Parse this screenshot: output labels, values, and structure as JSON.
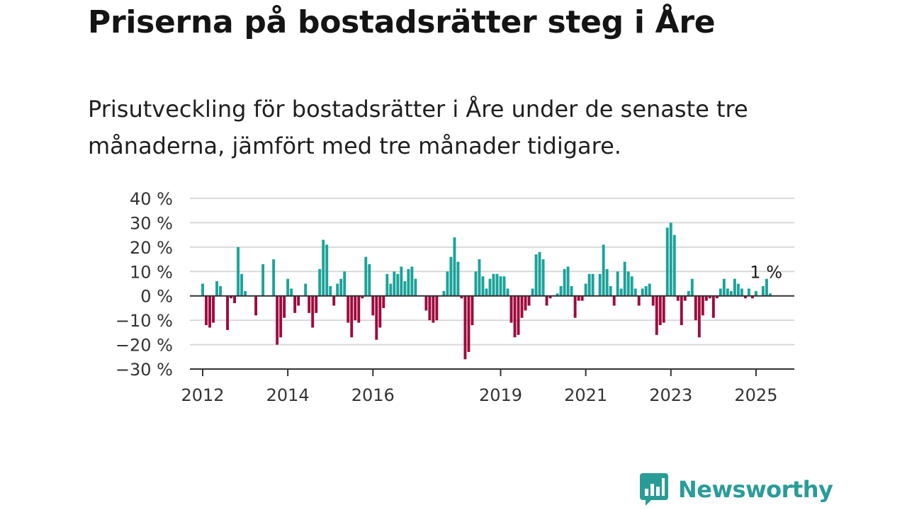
{
  "header": {
    "title": "Priserna på bostadsrätter steg i Åre",
    "subtitle": "Prisutveckling för bostadsrätter i Åre under de senaste tre månaderna, jämfört med tre månader tidigare."
  },
  "brand": {
    "name": "Newsworthy",
    "color": "#2a9c97"
  },
  "chart_data": {
    "type": "bar",
    "title": "",
    "xlabel": "",
    "ylabel": "",
    "ylim": [
      -30,
      40
    ],
    "xlim": [
      2011.7,
      2025.9
    ],
    "y_ticks": [
      40,
      30,
      20,
      10,
      0,
      -10,
      -20,
      -30
    ],
    "y_tick_labels": [
      "40 %",
      "30 %",
      "20 %",
      "10 %",
      "0 %",
      "−10 %",
      "−20 %",
      "−30 %"
    ],
    "x_ticks": [
      2012,
      2014,
      2016,
      2019,
      2021,
      2023,
      2025
    ],
    "x_tick_labels": [
      "2012",
      "2014",
      "2016",
      "2019",
      "2021",
      "2023",
      "2025"
    ],
    "grid": true,
    "legend": "none",
    "colors": {
      "positive": "#1aa39a",
      "negative": "#9e0a3c"
    },
    "annotation": {
      "text": "1 %",
      "x": 2025.17,
      "y": 1
    },
    "x_start": 2012.0,
    "x_step": 0.08333,
    "values": [
      5,
      -12,
      -13,
      -11,
      6,
      4,
      0,
      -14,
      -1,
      -3,
      20,
      9,
      2,
      0,
      0,
      -8,
      0,
      13,
      0,
      0,
      15,
      -20,
      -17,
      -9,
      7,
      3,
      -7,
      -4,
      0,
      5,
      -7,
      -13,
      -7,
      11,
      23,
      21,
      4,
      -4,
      5,
      7,
      10,
      -11,
      -17,
      -10,
      -11,
      -1,
      16,
      13,
      -8,
      -18,
      -13,
      -5,
      9,
      5,
      10,
      9,
      12,
      6,
      11,
      12,
      7,
      0,
      0,
      -6,
      -10,
      -11,
      -10,
      0,
      2,
      10,
      16,
      24,
      14,
      -1,
      -26,
      -23,
      -12,
      10,
      15,
      8,
      3,
      7,
      9,
      9,
      8,
      8,
      3,
      -11,
      -17,
      -16,
      -9,
      -6,
      -4,
      3,
      17,
      18,
      15,
      -4,
      -1,
      0,
      1,
      4,
      11,
      12,
      4,
      -9,
      -2,
      -2,
      5,
      9,
      9,
      0,
      9,
      21,
      11,
      4,
      -4,
      10,
      3,
      14,
      10,
      8,
      3,
      -4,
      3,
      4,
      5,
      -4,
      -16,
      -12,
      -11,
      28,
      30,
      25,
      -2,
      -12,
      -2,
      2,
      7,
      -10,
      -17,
      -8,
      -2,
      -1,
      -9,
      -1,
      3,
      7,
      3,
      2,
      7,
      5,
      3,
      -1,
      3,
      -1,
      2,
      0,
      4,
      7,
      1
    ]
  }
}
